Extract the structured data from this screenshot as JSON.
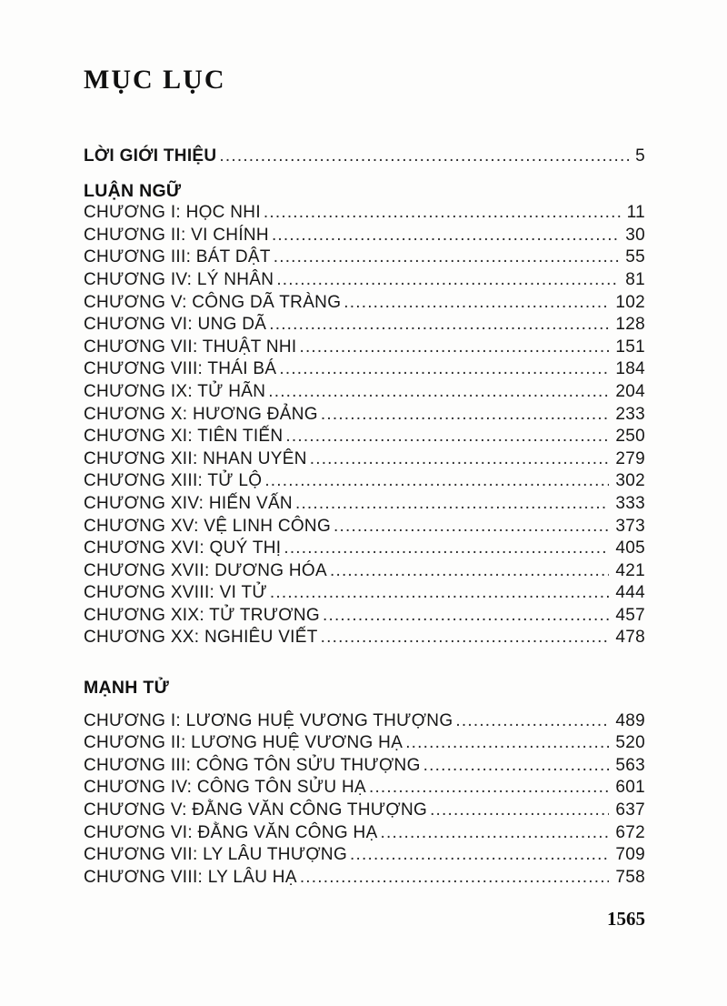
{
  "page": {
    "title": "MỤC LỤC",
    "folio": "1565"
  },
  "toc": {
    "intro": {
      "label": "LỜI GIỚI THIỆU",
      "page": "5"
    },
    "sections": [
      {
        "header": "LUẬN NGỮ",
        "entries": [
          {
            "label": "CHƯƠNG I: HỌC NHI",
            "page": "11"
          },
          {
            "label": "CHƯƠNG II: VI CHÍNH",
            "page": "30"
          },
          {
            "label": "CHƯƠNG III: BÁT DẬT",
            "page": "55"
          },
          {
            "label": "CHƯƠNG IV: LÝ NHÂN",
            "page": "81"
          },
          {
            "label": "CHƯƠNG V: CÔNG DÃ TRÀNG",
            "page": "102"
          },
          {
            "label": "CHƯƠNG VI: UNG DÃ",
            "page": "128"
          },
          {
            "label": "CHƯƠNG VII: THUẬT NHI",
            "page": "151"
          },
          {
            "label": "CHƯƠNG VIII: THÁI BÁ",
            "page": "184"
          },
          {
            "label": "CHƯƠNG IX: TỬ HÃN",
            "page": "204"
          },
          {
            "label": "CHƯƠNG X: HƯƠNG ĐẢNG",
            "page": "233"
          },
          {
            "label": "CHƯƠNG XI: TIÊN TIẾN",
            "page": "250"
          },
          {
            "label": "CHƯƠNG XII: NHAN UYÊN",
            "page": "279"
          },
          {
            "label": "CHƯƠNG XIII: TỬ LỘ",
            "page": "302"
          },
          {
            "label": "CHƯƠNG XIV: HIẾN VẤN",
            "page": "333"
          },
          {
            "label": "CHƯƠNG XV: VỆ LINH CÔNG",
            "page": "373"
          },
          {
            "label": "CHƯƠNG XVI: QUÝ THỊ",
            "page": "405"
          },
          {
            "label": "CHƯƠNG XVII: DƯƠNG HÓA",
            "page": "421"
          },
          {
            "label": "CHƯƠNG XVIII: VI TỬ",
            "page": "444"
          },
          {
            "label": "CHƯƠNG XIX: TỬ TRƯƠNG",
            "page": "457"
          },
          {
            "label": "CHƯƠNG XX: NGHIÊU VIẾT",
            "page": "478"
          }
        ]
      },
      {
        "header": "MẠNH TỬ",
        "entries": [
          {
            "label": "CHƯƠNG I: LƯƠNG HUỆ VƯƠNG THƯỢNG",
            "page": "489"
          },
          {
            "label": "CHƯƠNG II: LƯƠNG HUỆ VƯƠNG HẠ",
            "page": "520"
          },
          {
            "label": "CHƯƠNG III: CÔNG TÔN SỬU THƯỢNG",
            "page": "563"
          },
          {
            "label": "CHƯƠNG IV: CÔNG TÔN SỬU HẠ",
            "page": "601"
          },
          {
            "label": "CHƯƠNG V: ĐẰNG VĂN CÔNG THƯỢNG",
            "page": "637"
          },
          {
            "label": "CHƯƠNG VI: ĐẰNG VĂN CÔNG HẠ",
            "page": "672"
          },
          {
            "label": "CHƯƠNG VII: LY LÂU THƯỢNG",
            "page": "709"
          },
          {
            "label": "CHƯƠNG VIII: LY LÂU HẠ",
            "page": "758"
          }
        ]
      }
    ]
  }
}
